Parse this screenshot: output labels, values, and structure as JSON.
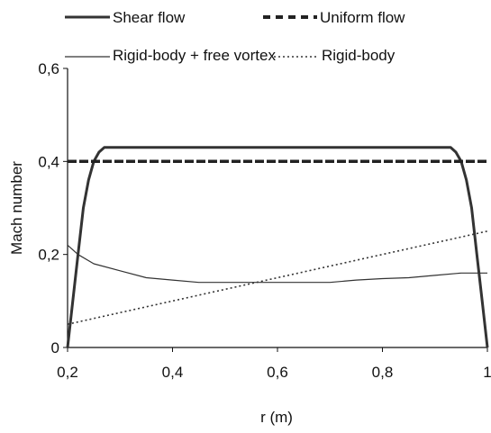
{
  "chart_data": {
    "type": "line",
    "xlabel": "r (m)",
    "ylabel": "Mach number",
    "xlim": [
      0.2,
      1.0
    ],
    "ylim": [
      0,
      0.6
    ],
    "xticks": [
      "0,2",
      "0,4",
      "0,6",
      "0,8",
      "1"
    ],
    "yticks": [
      "0",
      "0,2",
      "0,4",
      "0,6"
    ],
    "grid": false,
    "legend": "top",
    "series": [
      {
        "name": "Shear flow",
        "style": "solid-thick",
        "color": "#333333",
        "x": [
          0.2,
          0.21,
          0.22,
          0.23,
          0.24,
          0.25,
          0.26,
          0.27,
          0.28,
          0.92,
          0.93,
          0.94,
          0.95,
          0.96,
          0.97,
          0.98,
          0.99,
          1.0
        ],
        "y": [
          0.0,
          0.1,
          0.2,
          0.3,
          0.36,
          0.4,
          0.42,
          0.43,
          0.43,
          0.43,
          0.43,
          0.42,
          0.4,
          0.36,
          0.3,
          0.2,
          0.1,
          0.0
        ]
      },
      {
        "name": "Uniform flow",
        "style": "dashed-thick",
        "color": "#222222",
        "x": [
          0.2,
          1.0
        ],
        "y": [
          0.4,
          0.4
        ]
      },
      {
        "name": "Rigid-body + free vortex",
        "style": "solid-thin",
        "color": "#333333",
        "x": [
          0.2,
          0.22,
          0.25,
          0.3,
          0.35,
          0.4,
          0.45,
          0.5,
          0.55,
          0.6,
          0.65,
          0.7,
          0.75,
          0.8,
          0.85,
          0.9,
          0.95,
          1.0
        ],
        "y": [
          0.22,
          0.2,
          0.18,
          0.165,
          0.15,
          0.145,
          0.14,
          0.14,
          0.14,
          0.14,
          0.14,
          0.14,
          0.145,
          0.148,
          0.15,
          0.155,
          0.16,
          0.16
        ]
      },
      {
        "name": "Rigid-body",
        "style": "dotted",
        "color": "#333333",
        "x": [
          0.2,
          1.0
        ],
        "y": [
          0.05,
          0.25
        ]
      }
    ]
  }
}
